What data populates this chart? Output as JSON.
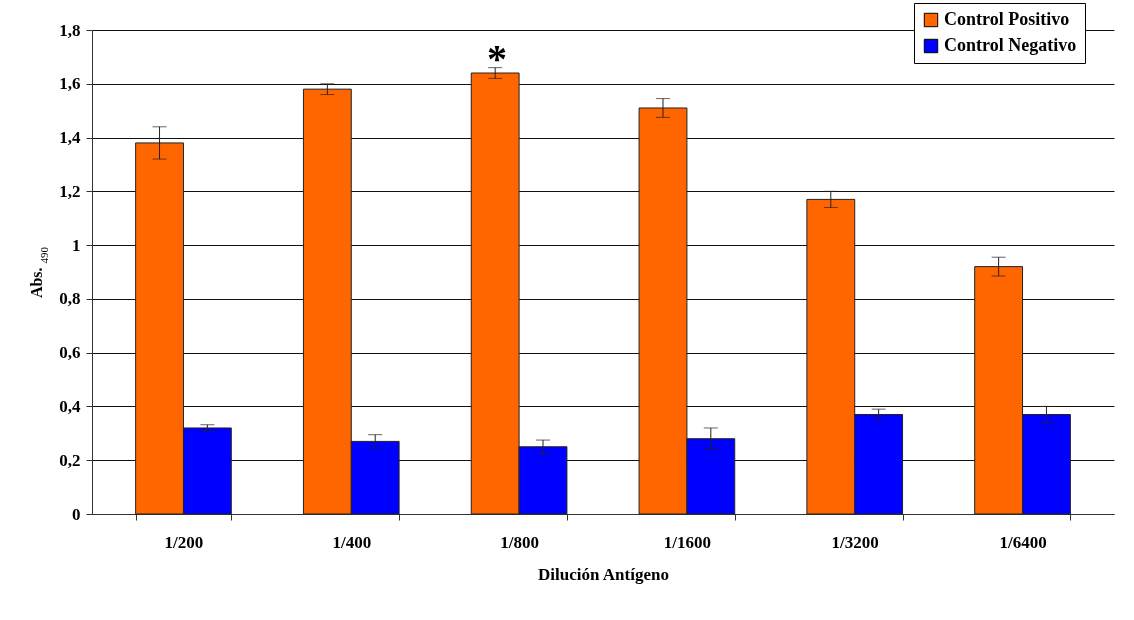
{
  "chart_data": {
    "type": "bar",
    "xlabel": "Dilución Antígeno",
    "ylabel": "Abs. $_{490}$",
    "categories": [
      "1/200",
      "1/400",
      "1/800",
      "1/1600",
      "1/3200",
      "1/6400"
    ],
    "series": [
      {
        "name": "Control Positivo",
        "color": "#ff6600",
        "values": [
          1.38,
          1.58,
          1.64,
          1.51,
          1.17,
          0.92
        ],
        "errors": [
          0.06,
          0.02,
          0.02,
          0.035,
          0.03,
          0.035
        ]
      },
      {
        "name": "Control Negativo",
        "color": "#0000ff",
        "values": [
          0.32,
          0.27,
          0.25,
          0.28,
          0.37,
          0.37
        ],
        "errors": [
          0.012,
          0.025,
          0.025,
          0.04,
          0.02,
          0.03
        ]
      }
    ],
    "ylim": [
      0,
      1.8
    ],
    "yticks": [
      {
        "value": 0,
        "label": "0"
      },
      {
        "value": 0.2,
        "label": "0,2"
      },
      {
        "value": 0.4,
        "label": "0,4"
      },
      {
        "value": 0.6,
        "label": "0,6"
      },
      {
        "value": 0.8,
        "label": "0,8"
      },
      {
        "value": 1,
        "label": "1"
      },
      {
        "value": 1.2,
        "label": "1,2"
      },
      {
        "value": 1.4,
        "label": "1,4"
      },
      {
        "value": 1.6,
        "label": "1,6"
      },
      {
        "value": 1.8,
        "label": "1,8"
      }
    ],
    "annotations": [
      "*"
    ],
    "grid": "y",
    "legend": "top right"
  }
}
